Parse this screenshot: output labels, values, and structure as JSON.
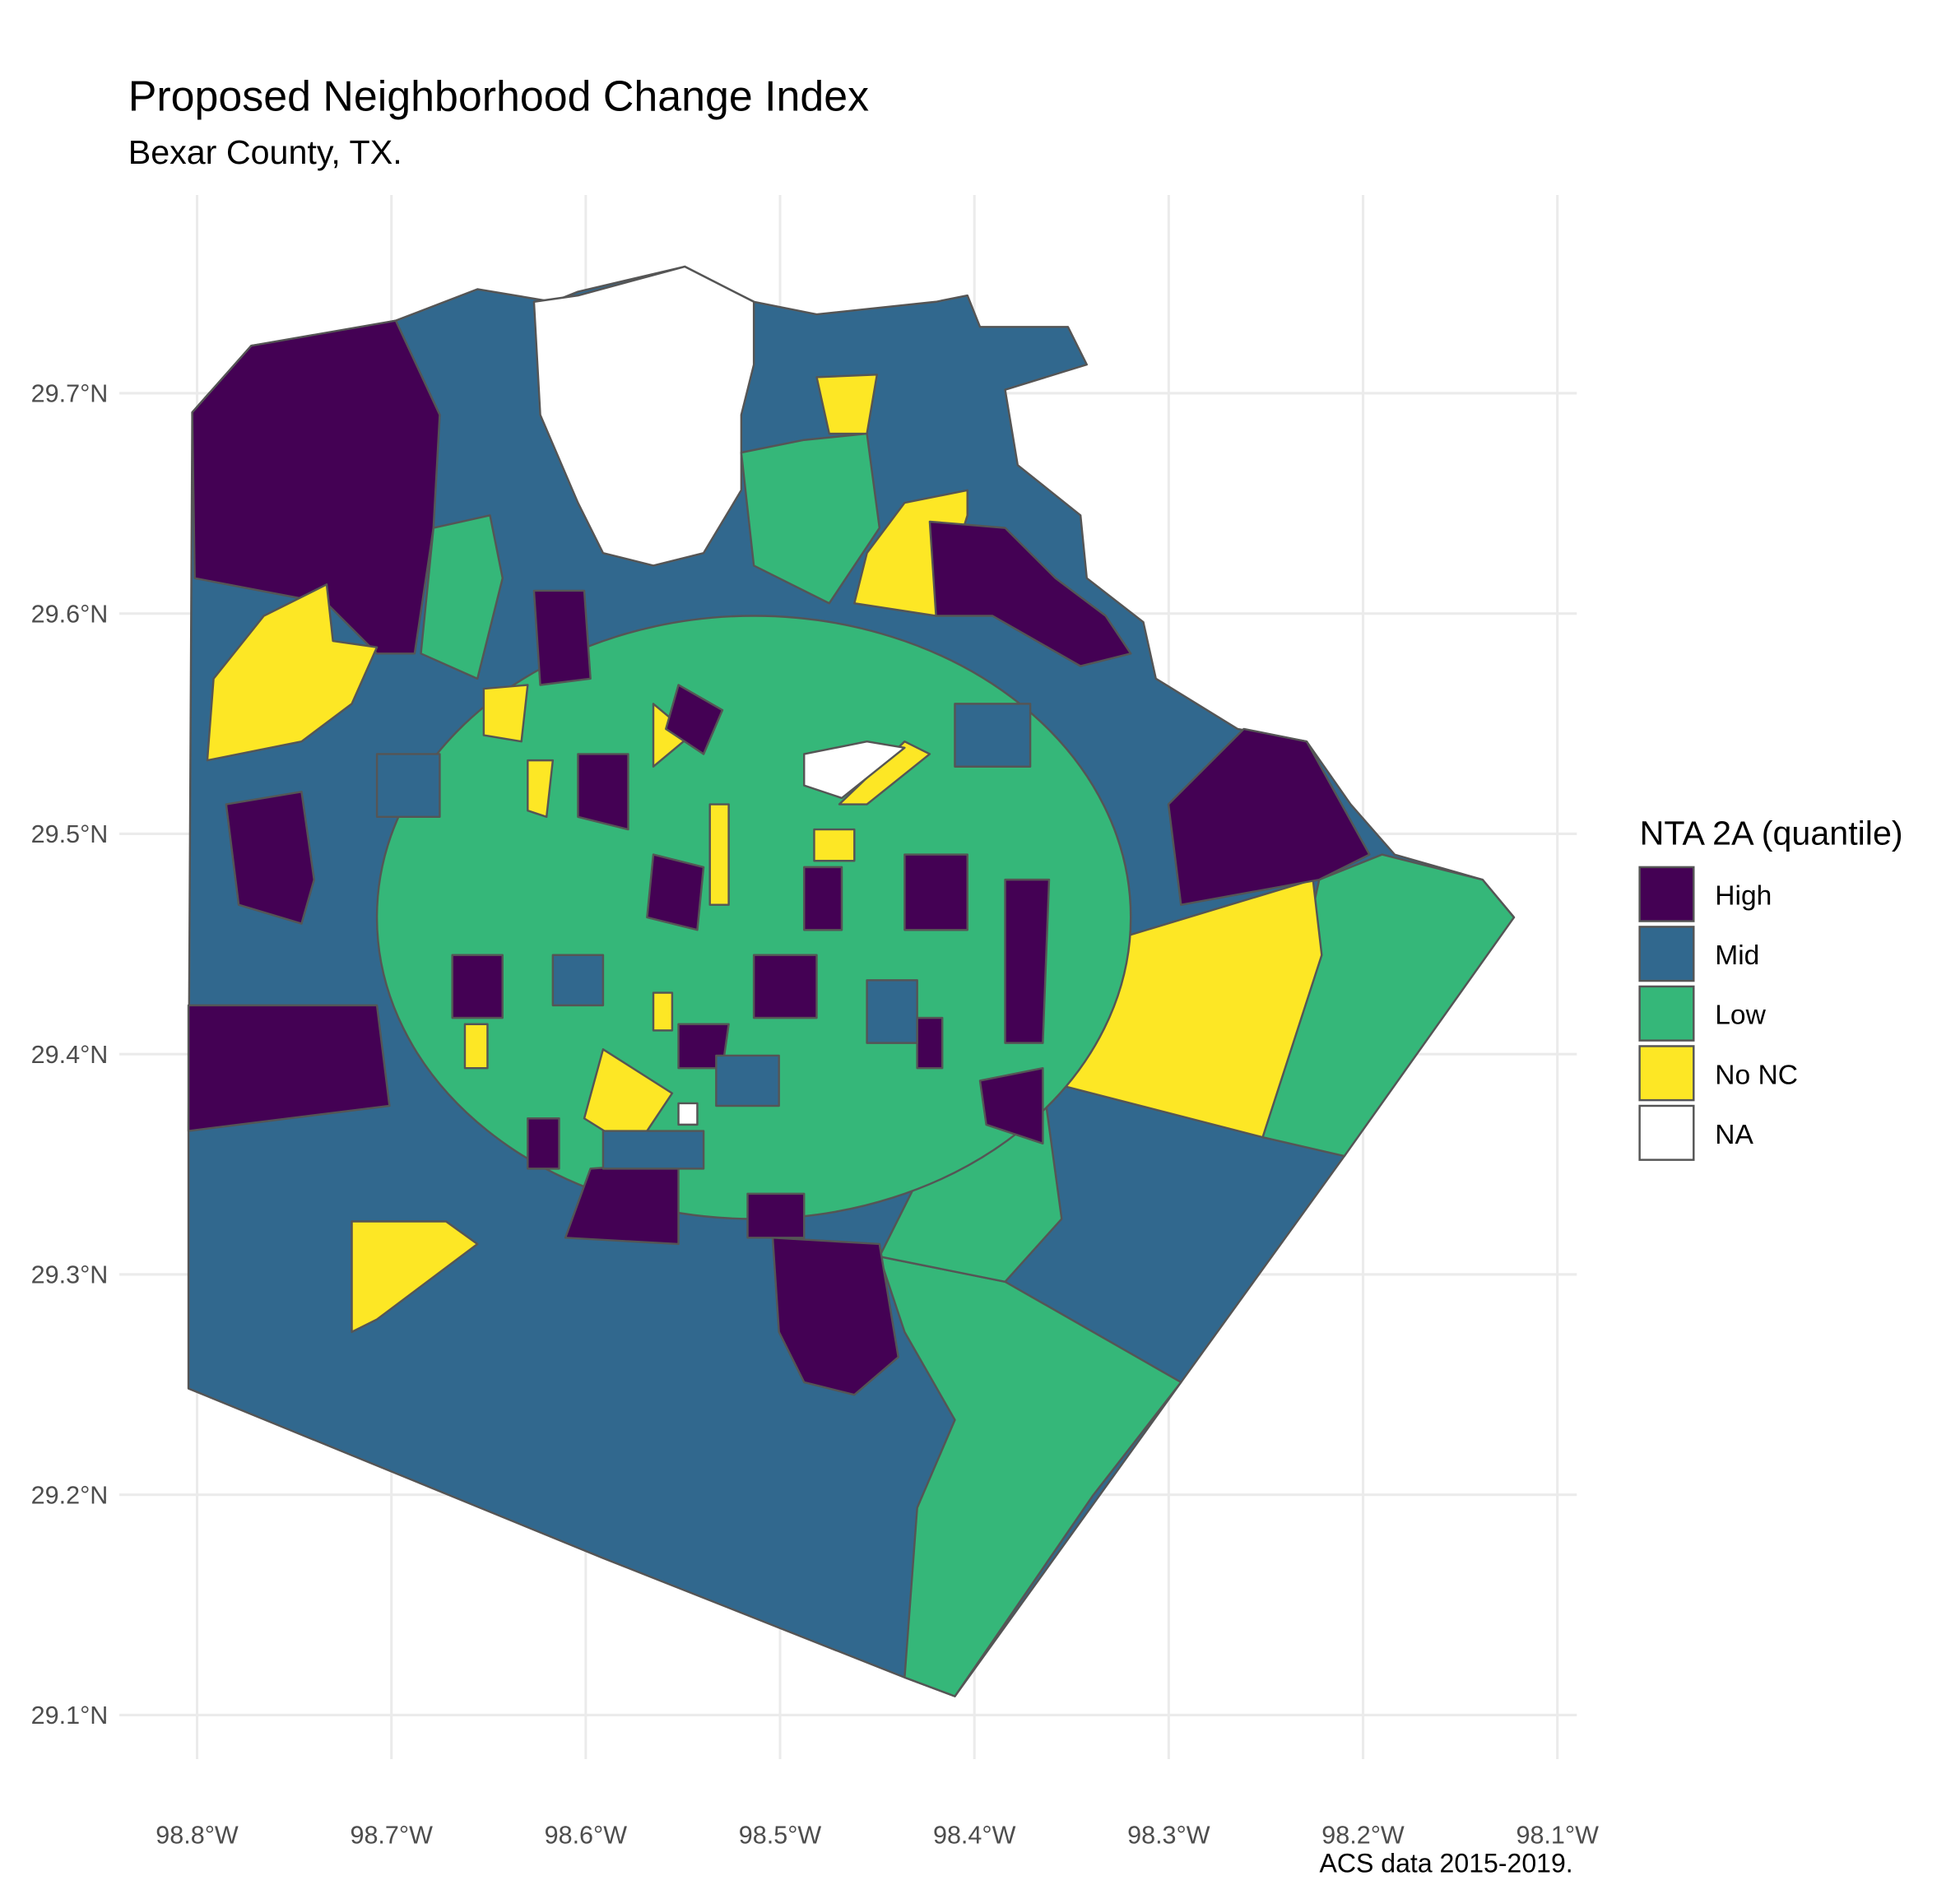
{
  "chart_data": {
    "type": "map",
    "title": "Proposed Neighborhood Change Index",
    "subtitle": "Bexar County, TX.",
    "caption": "ACS data 2015-2019.",
    "legend_title": "NTA 2A (quantile)",
    "legend": [
      {
        "name": "High",
        "color": "#440154"
      },
      {
        "name": "Mid",
        "color": "#31688e"
      },
      {
        "name": "Low",
        "color": "#35b779"
      },
      {
        "name": "No NC",
        "color": "#fde725"
      },
      {
        "name": "NA",
        "color": "#ffffff"
      }
    ],
    "xlim": [
      -98.84,
      -98.09
    ],
    "ylim": [
      29.08,
      29.79
    ],
    "xticks": [
      {
        "value": -98.8,
        "label": "98.8°W"
      },
      {
        "value": -98.7,
        "label": "98.7°W"
      },
      {
        "value": -98.6,
        "label": "98.6°W"
      },
      {
        "value": -98.5,
        "label": "98.5°W"
      },
      {
        "value": -98.4,
        "label": "98.4°W"
      },
      {
        "value": -98.3,
        "label": "98.3°W"
      },
      {
        "value": -98.2,
        "label": "98.2°W"
      },
      {
        "value": -98.1,
        "label": "98.1°W"
      }
    ],
    "yticks": [
      {
        "value": 29.1,
        "label": "29.1°N"
      },
      {
        "value": 29.2,
        "label": "29.2°N"
      },
      {
        "value": 29.3,
        "label": "29.3°N"
      },
      {
        "value": 29.4,
        "label": "29.4°N"
      },
      {
        "value": 29.5,
        "label": "29.5°N"
      },
      {
        "value": 29.6,
        "label": "29.6°N"
      },
      {
        "value": 29.7,
        "label": "29.7°N"
      }
    ],
    "grid": true
  }
}
